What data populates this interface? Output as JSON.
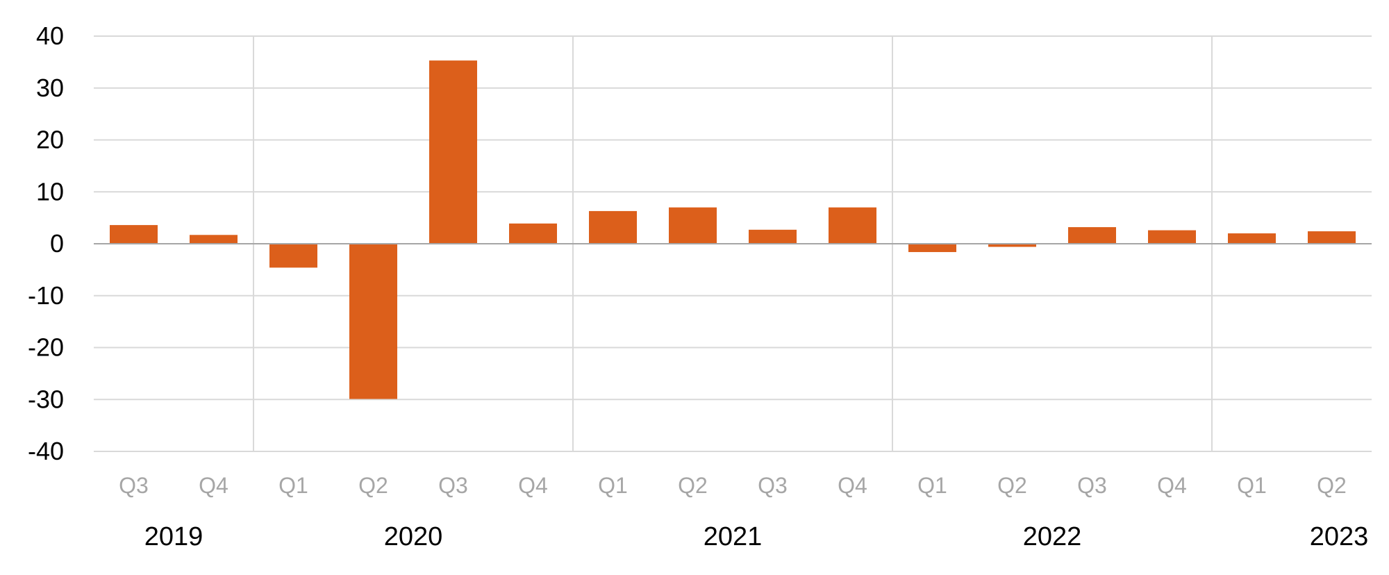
{
  "chart_data": {
    "type": "bar",
    "title": "",
    "xlabel": "",
    "ylabel": "",
    "ylim": [
      -40,
      40
    ],
    "yticks": [
      "40",
      "30",
      "20",
      "10",
      "0",
      "-10",
      "-20",
      "-30",
      "-40"
    ],
    "grid": true,
    "legend": "none",
    "bar_color": "#dc5f1b",
    "categories": [
      "Q3",
      "Q4",
      "Q1",
      "Q2",
      "Q3",
      "Q4",
      "Q1",
      "Q2",
      "Q3",
      "Q4",
      "Q1",
      "Q2",
      "Q3",
      "Q4",
      "Q1",
      "Q2"
    ],
    "years": [
      {
        "label": "2019",
        "count": 2
      },
      {
        "label": "2020",
        "count": 4
      },
      {
        "label": "2021",
        "count": 4
      },
      {
        "label": "2022",
        "count": 4
      },
      {
        "label": "2023",
        "count": 2
      }
    ],
    "series": [
      {
        "values": [
          3.6,
          1.7,
          -4.6,
          -29.9,
          35.3,
          3.9,
          6.3,
          7.0,
          2.7,
          7.0,
          -1.6,
          -0.6,
          3.2,
          2.6,
          2.0,
          2.4
        ]
      }
    ]
  }
}
